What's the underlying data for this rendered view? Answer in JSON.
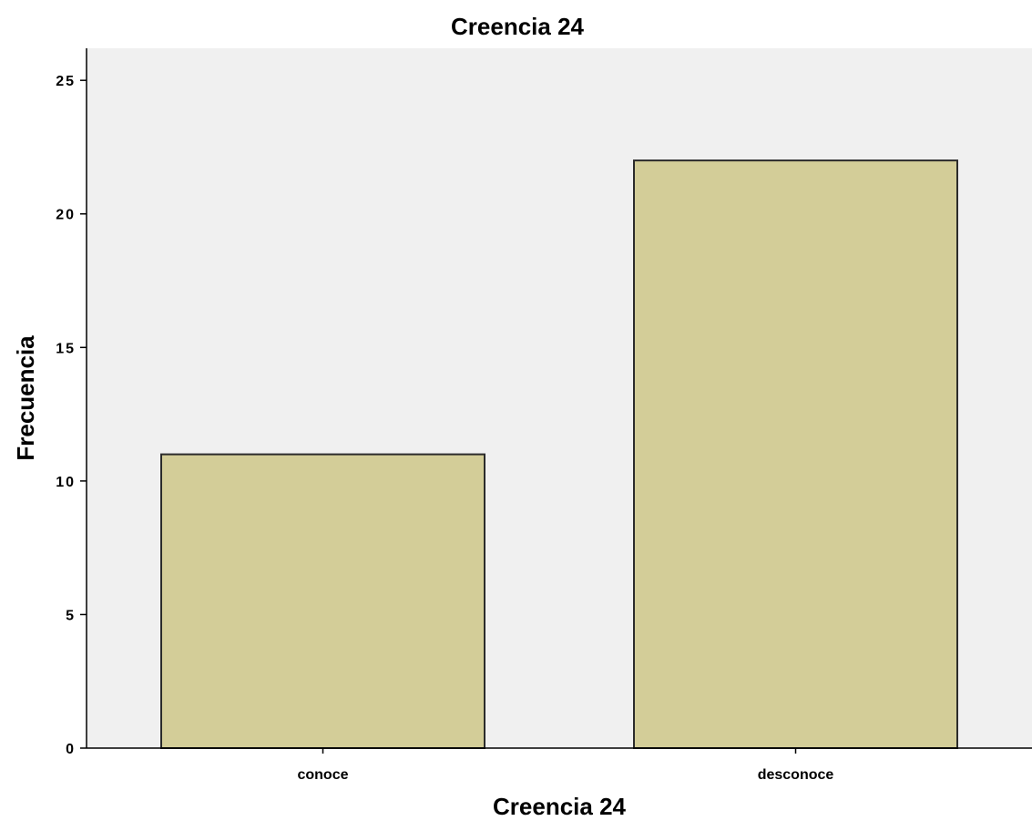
{
  "chart_data": {
    "type": "bar",
    "title": "Creencia 24",
    "xlabel": "Creencia 24",
    "ylabel": "Frecuencia",
    "categories": [
      "conoce",
      "desconoce"
    ],
    "values": [
      11,
      22
    ],
    "ylim": [
      0,
      26.2
    ],
    "yticks": [
      0,
      5,
      10,
      15,
      20,
      25
    ],
    "grid": false,
    "legend": "none",
    "colors": {
      "plot_background": "#f0f0f0",
      "bar_fill": "#d3cd98",
      "bar_stroke": "#2b2b2b",
      "axis": "#000000"
    }
  }
}
